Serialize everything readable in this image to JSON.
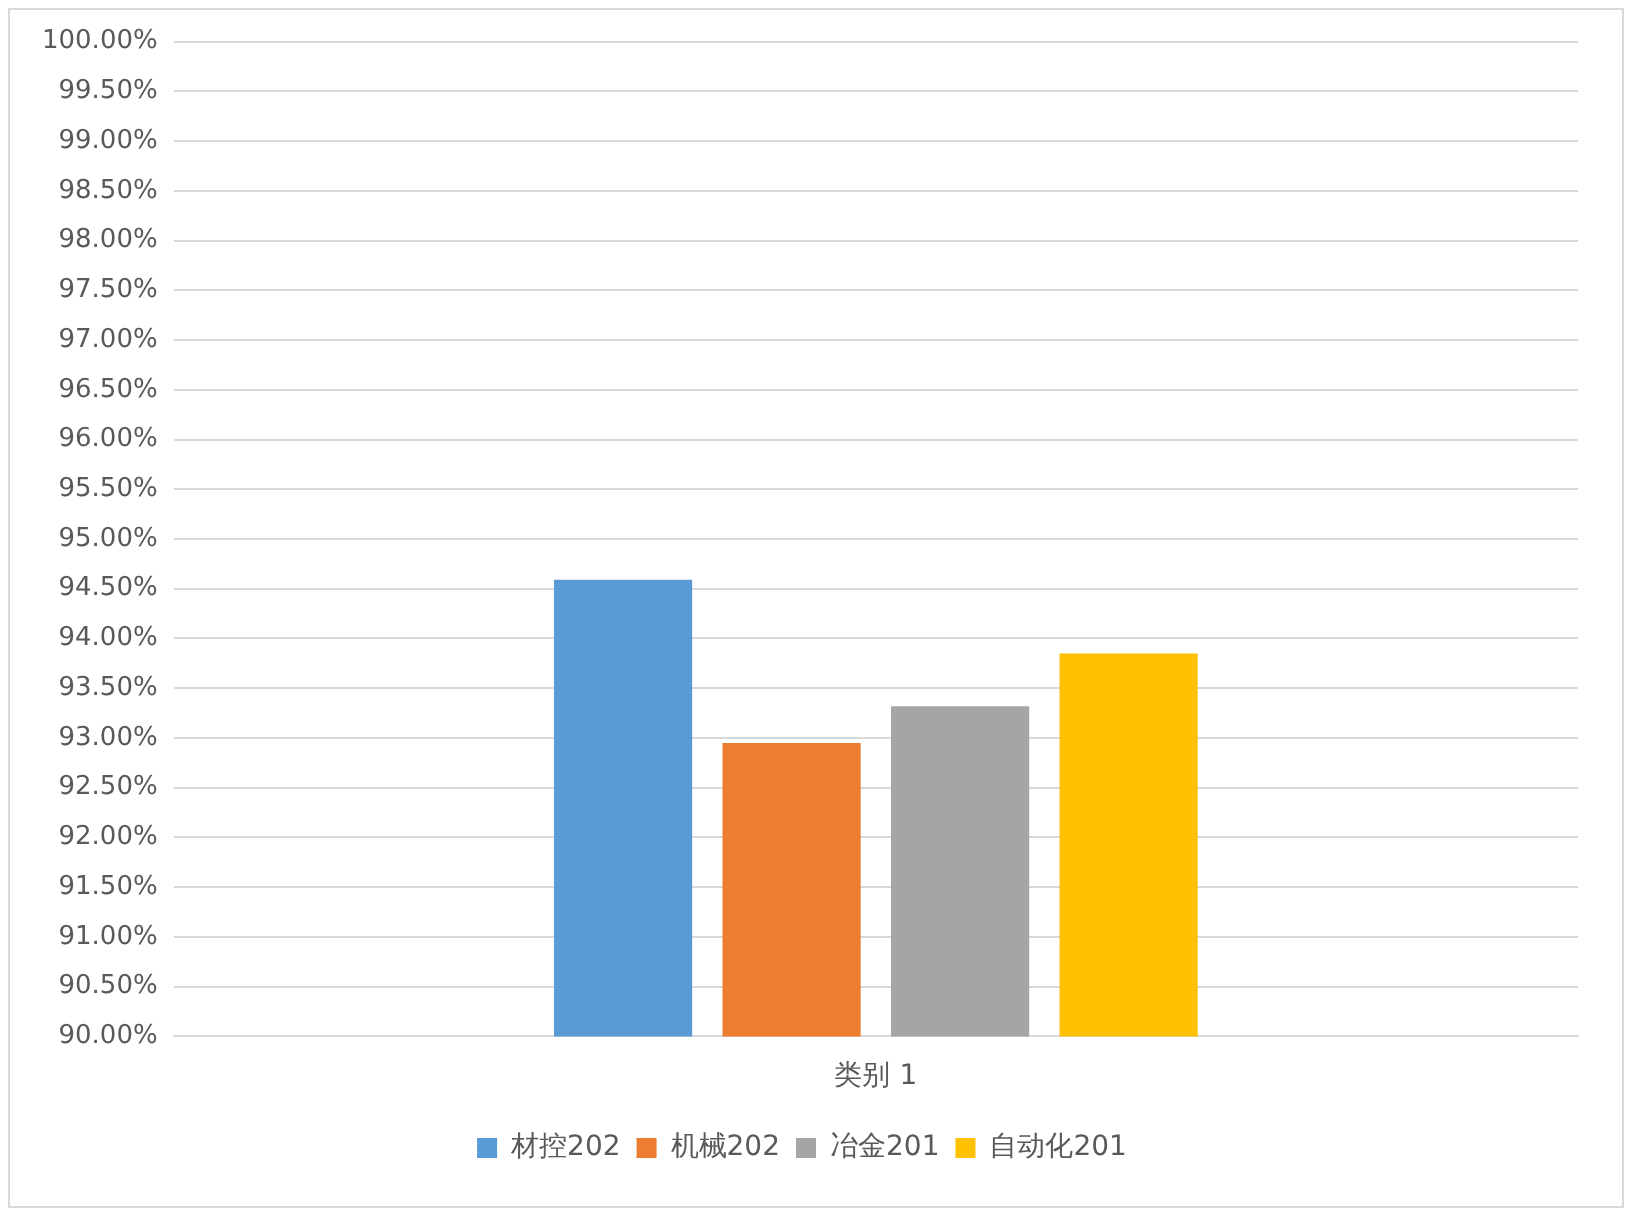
{
  "chart_data": {
    "type": "bar",
    "categories": [
      "类别 1"
    ],
    "series": [
      {
        "name": "材控202",
        "color": "#5b9bd5",
        "values": [
          94.59
        ]
      },
      {
        "name": "机械202",
        "color": "#ed7d31",
        "values": [
          92.95
        ]
      },
      {
        "name": "冶金201",
        "color": "#a5a5a5",
        "values": [
          93.32
        ]
      },
      {
        "name": "自动化201",
        "color": "#ffc000",
        "values": [
          93.85
        ]
      }
    ],
    "ylim": [
      90,
      100
    ],
    "yticks": [
      {
        "value": 90,
        "label": "90.00%"
      },
      {
        "value": 90.5,
        "label": "90.50%"
      },
      {
        "value": 91,
        "label": "91.00%"
      },
      {
        "value": 91.5,
        "label": "91.50%"
      },
      {
        "value": 92,
        "label": "92.00%"
      },
      {
        "value": 92.5,
        "label": "92.50%"
      },
      {
        "value": 93,
        "label": "93.00%"
      },
      {
        "value": 93.5,
        "label": "93.50%"
      },
      {
        "value": 94,
        "label": "94.00%"
      },
      {
        "value": 94.5,
        "label": "94.50%"
      },
      {
        "value": 95,
        "label": "95.00%"
      },
      {
        "value": 95.5,
        "label": "95.50%"
      },
      {
        "value": 96,
        "label": "96.00%"
      },
      {
        "value": 96.5,
        "label": "96.50%"
      },
      {
        "value": 97,
        "label": "97.00%"
      },
      {
        "value": 97.5,
        "label": "97.50%"
      },
      {
        "value": 98,
        "label": "98.00%"
      },
      {
        "value": 98.5,
        "label": "98.50%"
      },
      {
        "value": 99,
        "label": "99.00%"
      },
      {
        "value": 99.5,
        "label": "99.50%"
      },
      {
        "value": 100,
        "label": "100.00%"
      }
    ],
    "grid": "y",
    "legend": "bottom"
  }
}
